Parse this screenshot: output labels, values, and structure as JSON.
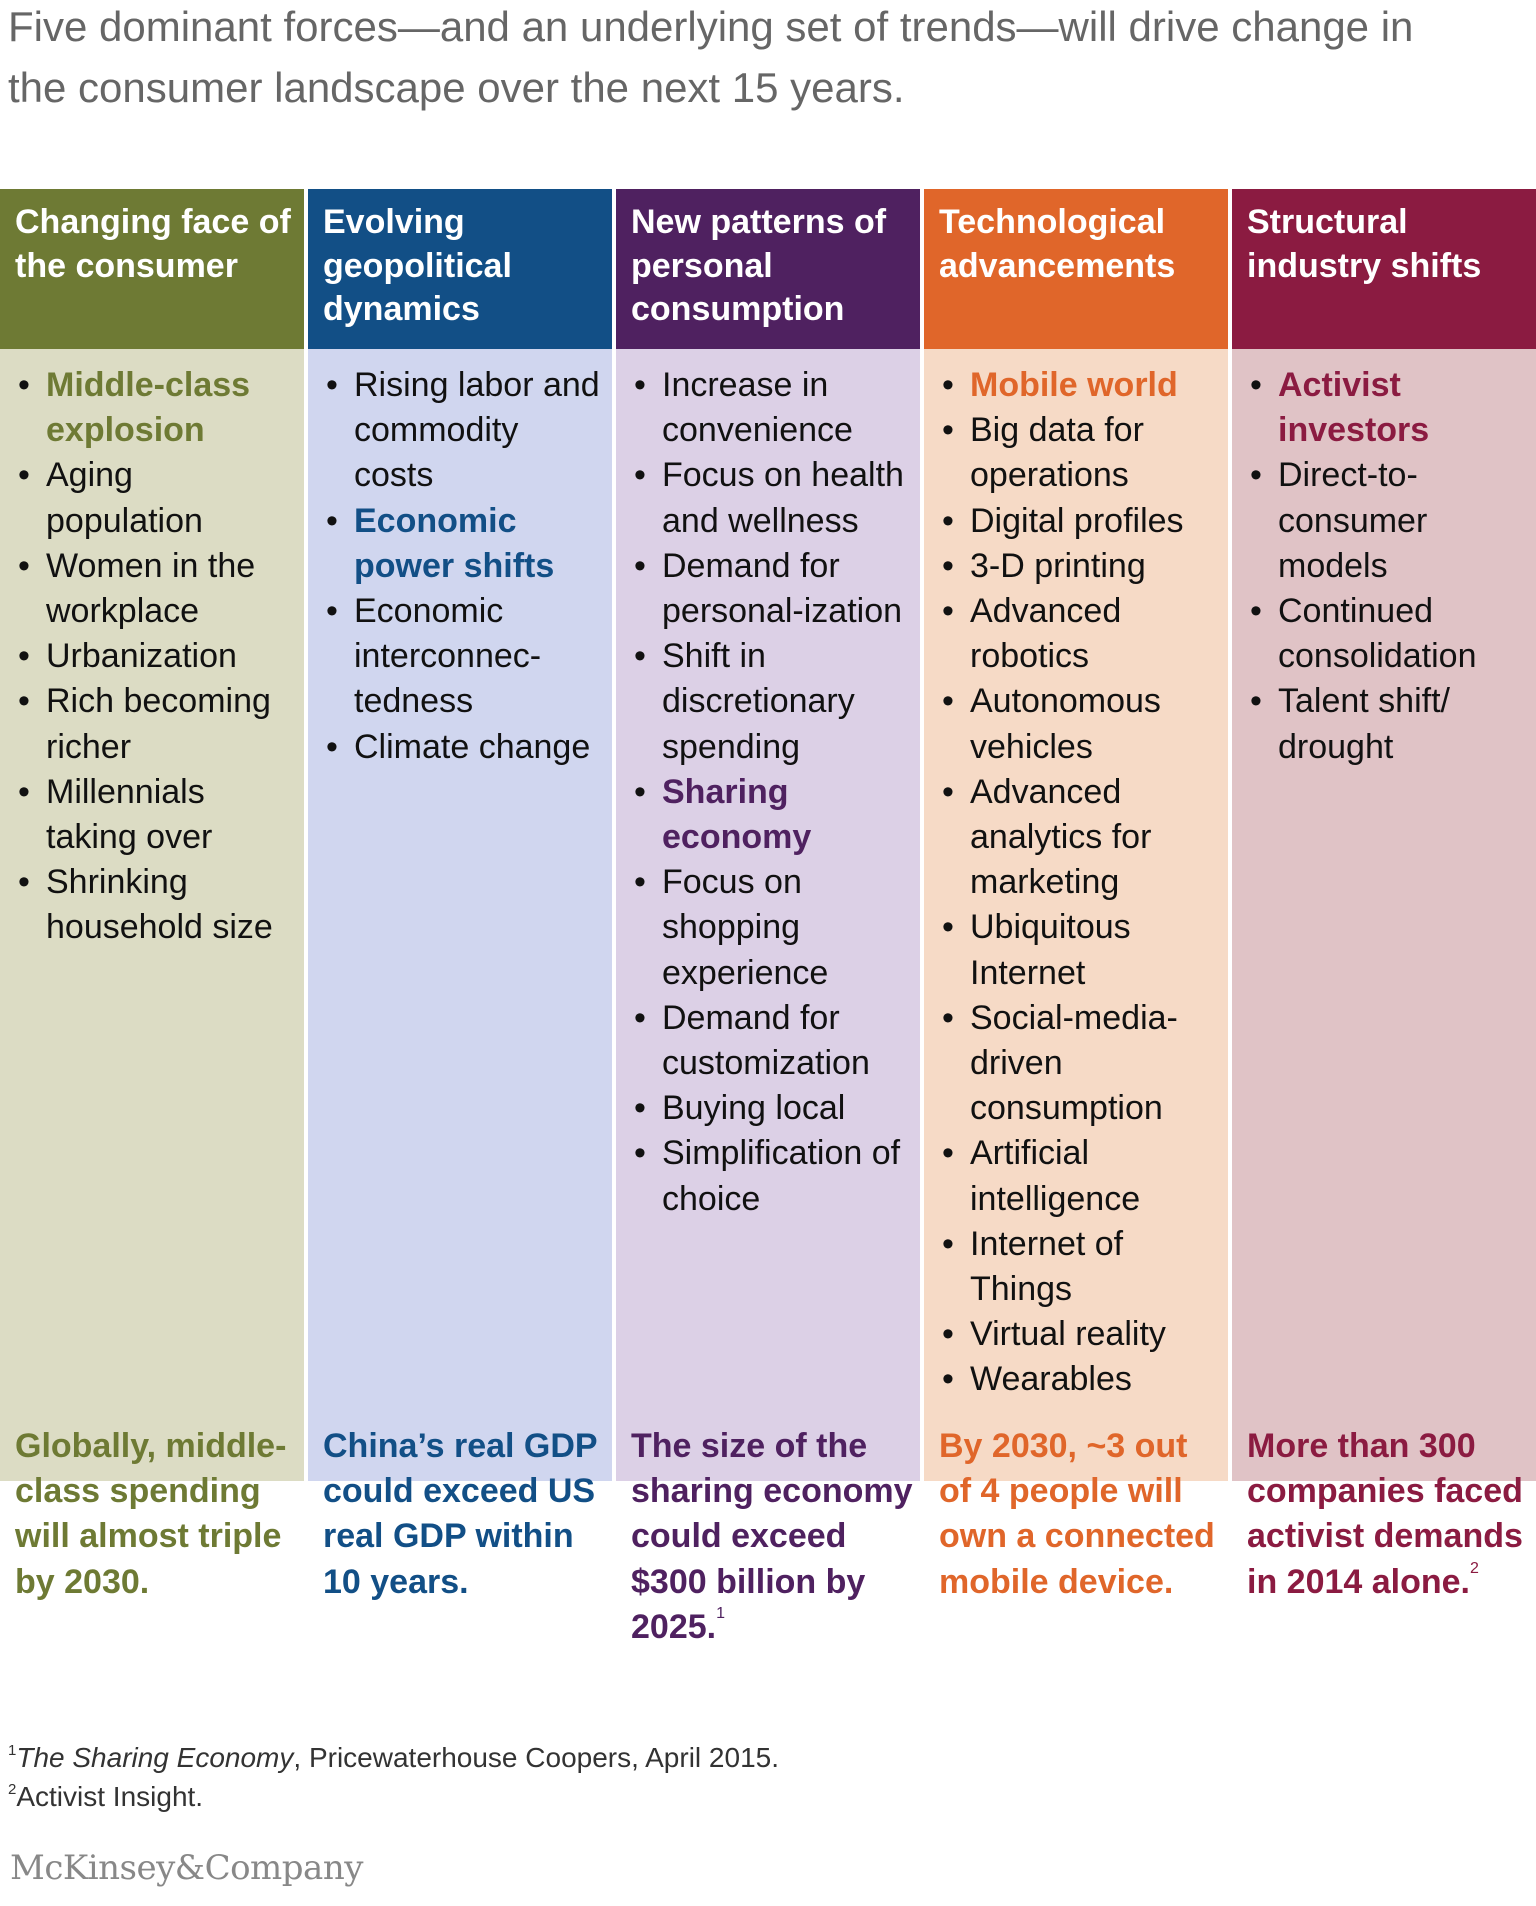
{
  "headline": "Five dominant forces—and an underlying set of trends—will drive change in the consumer landscape over the next 15 years.",
  "columns": [
    {
      "title": "Changing face of the consumer",
      "header_color": "#6e7a34",
      "body_color": "#dcdcc4",
      "accent_color": "#6e7a34",
      "items": [
        {
          "text": "Middle-class explosion",
          "highlight": true
        },
        {
          "text": "Aging population",
          "highlight": false
        },
        {
          "text": "Women in the workplace",
          "highlight": false
        },
        {
          "text": "Urbanization",
          "highlight": false
        },
        {
          "text": "Rich becoming richer",
          "highlight": false
        },
        {
          "text": "Millennials taking over",
          "highlight": false
        },
        {
          "text": "Shrinking household size",
          "highlight": false
        }
      ],
      "stat": "Globally, middle-class spending will almost triple by 2030.",
      "stat_note": ""
    },
    {
      "title": "Evolving geopolitical dynamics",
      "header_color": "#124f86",
      "body_color": "#d0d6ef",
      "accent_color": "#124f86",
      "items": [
        {
          "text": "Rising labor and commodity costs",
          "highlight": false
        },
        {
          "text": "Economic power shifts",
          "highlight": true
        },
        {
          "text": "Economic interconnec-tedness",
          "highlight": false
        },
        {
          "text": "Climate change",
          "highlight": false
        }
      ],
      "stat": "China’s real GDP could exceed US real GDP within 10 years.",
      "stat_note": ""
    },
    {
      "title": "New patterns of personal consumption",
      "header_color": "#4f2160",
      "body_color": "#dcd0e6",
      "accent_color": "#4f2160",
      "items": [
        {
          "text": "Increase in convenience",
          "highlight": false
        },
        {
          "text": "Focus on health and wellness",
          "highlight": false
        },
        {
          "text": "Demand for personal-ization",
          "highlight": false
        },
        {
          "text": "Shift in discretionary spending",
          "highlight": false
        },
        {
          "text": "Sharing economy",
          "highlight": true
        },
        {
          "text": "Focus on shopping experience",
          "highlight": false
        },
        {
          "text": "Demand for customization",
          "highlight": false
        },
        {
          "text": "Buying local",
          "highlight": false
        },
        {
          "text": "Simplification of choice",
          "highlight": false
        }
      ],
      "stat": "The size of the sharing economy could exceed $300 billion by 2025.",
      "stat_note": "1"
    },
    {
      "title": "Technological advancements",
      "header_color": "#e0662a",
      "body_color": "#f6dac6",
      "accent_color": "#e0662a",
      "items": [
        {
          "text": "Mobile world",
          "highlight": true
        },
        {
          "text": "Big data for operations",
          "highlight": false
        },
        {
          "text": "Digital profiles",
          "highlight": false
        },
        {
          "text": "3-D printing",
          "highlight": false
        },
        {
          "text": "Advanced robotics",
          "highlight": false
        },
        {
          "text": "Autonomous vehicles",
          "highlight": false
        },
        {
          "text": "Advanced analytics for marketing",
          "highlight": false
        },
        {
          "text": "Ubiquitous Internet",
          "highlight": false
        },
        {
          "text": "Social-media-driven consumption",
          "highlight": false
        },
        {
          "text": "Artificial intelligence",
          "highlight": false
        },
        {
          "text": "Internet of Things",
          "highlight": false
        },
        {
          "text": "Virtual reality",
          "highlight": false
        },
        {
          "text": "Wearables",
          "highlight": false
        }
      ],
      "stat": "By 2030, ~3 out of 4 people will own a connected mobile device.",
      "stat_note": ""
    },
    {
      "title": "Structural industry shifts",
      "header_color": "#8b1b41",
      "body_color": "#e0c3c6",
      "accent_color": "#8b1b41",
      "items": [
        {
          "text": "Activist investors",
          "highlight": true
        },
        {
          "text": "Direct-to-consumer models",
          "highlight": false
        },
        {
          "text": "Continued consolidation",
          "highlight": false
        },
        {
          "text": "Talent shift/ drought",
          "highlight": false
        }
      ],
      "stat": "More than 300 companies faced activist demands in 2014 alone.",
      "stat_note": "2"
    }
  ],
  "footnotes": [
    {
      "mark": "1",
      "title": "The Sharing Economy",
      "text": ", Pricewaterhouse Coopers, April 2015."
    },
    {
      "mark": "2",
      "title": "",
      "text": "Activist Insight."
    }
  ],
  "logo": "McKinsey&Company"
}
